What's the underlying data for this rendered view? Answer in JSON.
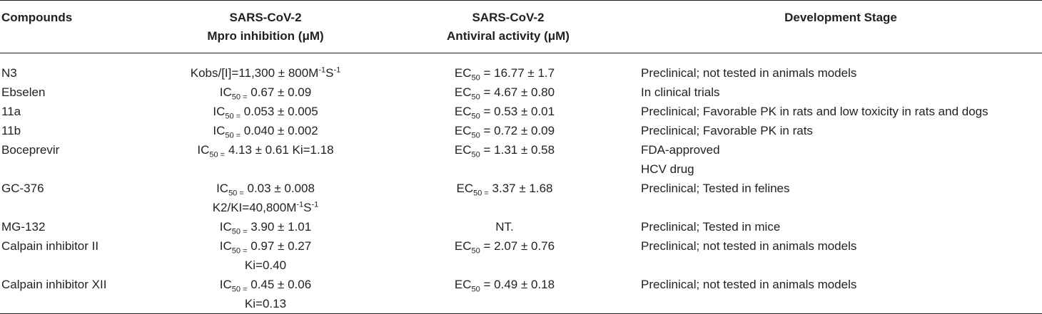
{
  "table": {
    "header": [
      [
        [
          "Compounds"
        ]
      ],
      [
        [
          "SARS-CoV-2"
        ],
        [
          "Mpro inhibition (μM)"
        ]
      ],
      [
        [
          "SARS-CoV-2"
        ],
        [
          "Antiviral activity (μM)"
        ]
      ],
      [
        [
          "Development Stage"
        ]
      ]
    ],
    "rows": [
      [
        [
          [
            "N3"
          ]
        ],
        [
          [
            "Kobs/[I]=11,300 ± 800M",
            {
              "sup": "-1"
            },
            "S",
            {
              "sup": "-1"
            }
          ]
        ],
        [
          [
            "EC",
            {
              "sub": "50"
            },
            " = 16.77 ± 1.7"
          ]
        ],
        [
          [
            "Preclinical; not tested in animals models"
          ]
        ]
      ],
      [
        [
          [
            "Ebselen"
          ]
        ],
        [
          [
            "IC",
            {
              "sub": "50 ="
            },
            " 0.67 ± 0.09"
          ]
        ],
        [
          [
            "EC",
            {
              "sub": "50"
            },
            " = 4.67 ± 0.80"
          ]
        ],
        [
          [
            "In clinical trials"
          ]
        ]
      ],
      [
        [
          [
            "11a"
          ]
        ],
        [
          [
            "IC",
            {
              "sub": "50 ="
            },
            " 0.053 ± 0.005"
          ]
        ],
        [
          [
            "EC",
            {
              "sub": "50"
            },
            " = 0.53 ± 0.01"
          ]
        ],
        [
          [
            "Preclinical; Favorable PK in rats and low toxicity in rats and dogs"
          ]
        ]
      ],
      [
        [
          [
            "11b"
          ]
        ],
        [
          [
            "IC",
            {
              "sub": "50 ="
            },
            " 0.040 ± 0.002"
          ]
        ],
        [
          [
            "EC",
            {
              "sub": "50"
            },
            " = 0.72 ± 0.09"
          ]
        ],
        [
          [
            "Preclinical; Favorable PK in rats"
          ]
        ]
      ],
      [
        [
          [
            "Boceprevir"
          ]
        ],
        [
          [
            "IC",
            {
              "sub": "50 ="
            },
            " 4.13 ± 0.61 Ki=1.18"
          ]
        ],
        [
          [
            "EC",
            {
              "sub": "50"
            },
            " = 1.31 ± 0.58"
          ]
        ],
        [
          [
            "FDA-approved"
          ],
          [
            "HCV drug"
          ]
        ]
      ],
      [
        [
          [
            "GC-376"
          ]
        ],
        [
          [
            "IC",
            {
              "sub": "50 ="
            },
            " 0.03 ± 0.008"
          ],
          [
            "K2/KI=40,800M",
            {
              "sup": "-1"
            },
            "S",
            {
              "sup": "-1"
            }
          ]
        ],
        [
          [
            "EC",
            {
              "sub": "50 ="
            },
            " 3.37 ± 1.68"
          ]
        ],
        [
          [
            "Preclinical; Tested in felines"
          ]
        ]
      ],
      [
        [
          [
            "MG-132"
          ]
        ],
        [
          [
            "IC",
            {
              "sub": "50 ="
            },
            " 3.90 ± 1.01"
          ]
        ],
        [
          [
            "NT."
          ]
        ],
        [
          [
            "Preclinical; Tested in mice"
          ]
        ]
      ],
      [
        [
          [
            "Calpain inhibitor II"
          ]
        ],
        [
          [
            "IC",
            {
              "sub": "50 ="
            },
            " 0.97 ± 0.27"
          ],
          [
            "Ki=0.40"
          ]
        ],
        [
          [
            "EC",
            {
              "sub": "50"
            },
            " = 2.07 ± 0.76"
          ]
        ],
        [
          [
            "Preclinical; not tested in animals models"
          ]
        ]
      ],
      [
        [
          [
            "Calpain inhibitor XII"
          ]
        ],
        [
          [
            "IC",
            {
              "sub": "50 ="
            },
            " 0.45 ± 0.06"
          ],
          [
            "Ki=0.13"
          ]
        ],
        [
          [
            "EC",
            {
              "sub": "50"
            },
            " = 0.49 ± 0.18"
          ]
        ],
        [
          [
            "Preclinical; not tested in animals models"
          ]
        ]
      ]
    ]
  }
}
